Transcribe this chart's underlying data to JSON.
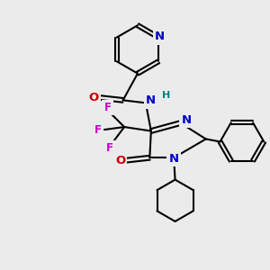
{
  "bg_color": "#ebebeb",
  "bond_color": "#000000",
  "bond_width": 1.5,
  "atom_colors": {
    "N": "#0000cc",
    "O": "#cc0000",
    "F": "#cc00cc",
    "H": "#008080",
    "C": "#000000"
  },
  "font_size_atom": 8.5
}
